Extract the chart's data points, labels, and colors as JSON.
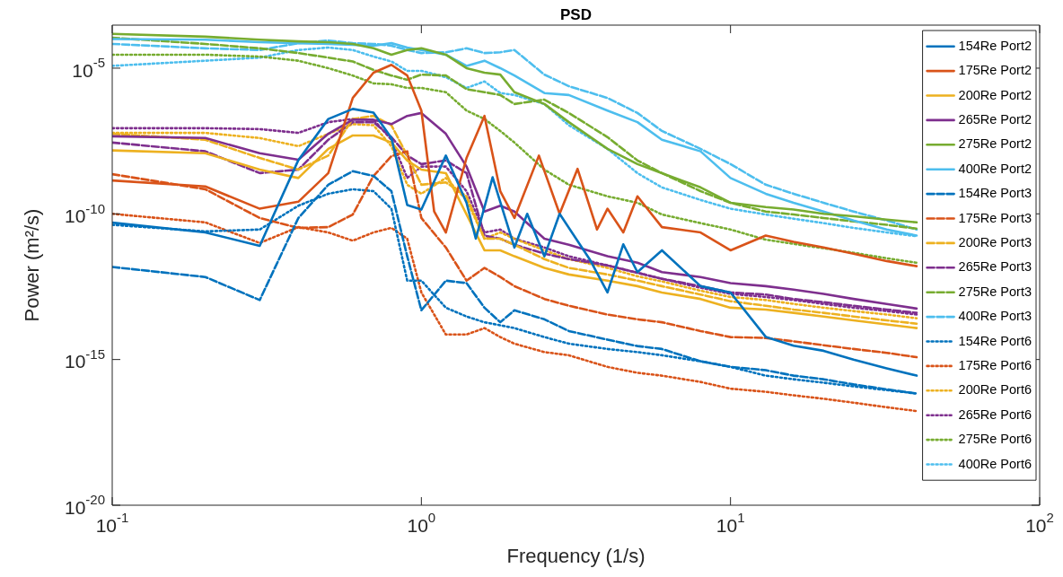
{
  "chart_data": {
    "type": "line",
    "title": "PSD",
    "xlabel": "Frequency (1/s)",
    "ylabel": "Power (m²/s)",
    "log": "xy",
    "grid": false,
    "legend": "top right",
    "marker": "none",
    "xlim": [
      0.1,
      100
    ],
    "ylim": [
      1e-20,
      0.0003
    ],
    "xticks": [
      {
        "value": 0.1,
        "label": "10$^{-1}$"
      },
      {
        "value": 1,
        "label": "10$^{0}$"
      },
      {
        "value": 10,
        "label": "10$^{1}$"
      },
      {
        "value": 100,
        "label": "10$^{2}$"
      }
    ],
    "yticks": [
      {
        "value": 1e-20,
        "label": "10$^{-20}$"
      },
      {
        "value": 1e-15,
        "label": "10$^{-15}$"
      },
      {
        "value": 1e-10,
        "label": "10$^{-10}$"
      },
      {
        "value": 1e-05,
        "label": "10$^{-5}$"
      }
    ],
    "x": [
      0.1,
      0.2,
      0.3,
      0.4,
      0.5,
      0.6,
      0.7,
      0.8,
      0.9,
      1,
      1.2,
      1.4,
      1.6,
      1.8,
      2,
      2.5,
      3,
      4,
      5,
      6,
      8,
      10,
      13,
      16,
      20,
      25,
      32,
      40
    ],
    "series": [
      {
        "name": "154Re Port2",
        "color": "#0072bd",
        "line_style": "solid",
        "x": [
          0.1,
          0.2,
          0.3,
          0.4,
          0.5,
          0.6,
          0.7,
          0.8,
          0.9,
          1,
          1.2,
          1.4,
          1.5,
          1.7,
          2,
          2.2,
          2.5,
          2.8,
          3.5,
          4,
          4.5,
          5,
          6,
          8,
          10,
          13,
          16,
          20,
          25,
          32,
          40
        ],
        "values": [
          5e-11,
          2.3e-11,
          8e-12,
          7e-09,
          1.8e-07,
          4e-07,
          3e-07,
          4e-08,
          2e-10,
          1.4e-10,
          1e-08,
          2.4e-10,
          1.4e-11,
          1.8e-09,
          7e-12,
          1e-10,
          3.5e-12,
          1e-10,
          2.8e-12,
          2e-13,
          9e-12,
          1e-12,
          5.6e-12,
          3.3e-13,
          2e-13,
          6e-15,
          3e-15,
          2e-15,
          1e-15,
          5e-16,
          2.8e-16
        ]
      },
      {
        "name": "175Re Port2",
        "color": "#d95319",
        "line_style": "solid",
        "x": [
          0.1,
          0.2,
          0.3,
          0.4,
          0.5,
          0.6,
          0.7,
          0.8,
          0.9,
          1,
          1.1,
          1.2,
          1.4,
          1.6,
          1.8,
          2,
          2.4,
          2.8,
          3.2,
          3.7,
          4,
          4.5,
          5,
          6,
          8,
          10,
          13,
          16,
          20,
          25,
          32,
          40
        ],
        "values": [
          1.4e-09,
          8.7e-10,
          1.5e-10,
          2.6e-10,
          2.5e-09,
          9.5e-07,
          7e-06,
          1.3e-05,
          5.6e-06,
          3.5e-07,
          1.2e-10,
          2.3e-11,
          8.3e-09,
          2.3e-07,
          6e-10,
          7.2e-11,
          1e-08,
          1e-10,
          3.5e-09,
          2.9e-11,
          1.5e-10,
          2.3e-11,
          4e-10,
          3.5e-11,
          2.3e-11,
          5.6e-12,
          1.8e-11,
          1.1e-11,
          7e-12,
          4.3e-12,
          2.4e-12,
          1.6e-12
        ]
      },
      {
        "name": "200Re Port2",
        "color": "#edb120",
        "line_style": "solid",
        "values": [
          1.5e-08,
          1.2e-08,
          3.3e-09,
          1.7e-09,
          1.7e-08,
          4.9e-08,
          4.9e-08,
          2.8e-08,
          6.8e-09,
          3.3e-09,
          2.5e-09,
          9.5e-11,
          5.6e-12,
          5.6e-12,
          3.5e-12,
          1.4e-12,
          8.3e-13,
          5.1e-13,
          3.3e-13,
          2e-13,
          1.2e-13,
          6e-14,
          5.2e-14,
          4e-14,
          3e-14,
          2.2e-14,
          1.6e-14,
          1.2e-14
        ]
      },
      {
        "name": "265Re Port2",
        "color": "#7e2f8e",
        "line_style": "solid",
        "values": [
          4.6e-08,
          4e-08,
          1.2e-08,
          7.2e-09,
          5.6e-08,
          1.7e-07,
          1.7e-07,
          1.2e-07,
          2.3e-07,
          2.9e-07,
          5.6e-08,
          4.2e-09,
          1.2e-10,
          1.9e-10,
          1.2e-10,
          1.4e-11,
          8.7e-12,
          3.5e-12,
          2.1e-12,
          1e-12,
          6.8e-13,
          4.2e-13,
          3.3e-13,
          2.5e-13,
          1.8e-13,
          1.2e-13,
          8.1e-14,
          5.6e-14
        ]
      },
      {
        "name": "275Re Port2",
        "color": "#77ac30",
        "line_style": "solid",
        "values": [
          0.00015,
          0.00012,
          9.5e-05,
          8.3e-05,
          7.8e-05,
          6.8e-05,
          4.8e-05,
          2.9e-05,
          4.2e-05,
          4.8e-05,
          2.9e-05,
          1e-05,
          7e-06,
          6e-06,
          1.5e-06,
          5.9e-07,
          1.4e-07,
          1.7e-08,
          5.1e-09,
          2.5e-09,
          8.1e-10,
          2.4e-10,
          1.7e-10,
          1.4e-10,
          1e-10,
          8.3e-11,
          6.3e-11,
          5.1e-11
        ]
      },
      {
        "name": "400Re Port2",
        "color": "#4dbeee",
        "line_style": "solid",
        "values": [
          0.0001,
          9.5e-05,
          7.8e-05,
          7.2e-05,
          6.8e-05,
          6.3e-05,
          5.9e-05,
          7.2e-05,
          5.1e-05,
          4.2e-05,
          2.9e-05,
          1.2e-05,
          1.8e-05,
          1e-05,
          5.6e-06,
          1.4e-06,
          1.2e-06,
          3.5e-07,
          1.4e-07,
          3.5e-08,
          1.4e-08,
          1.7e-09,
          4.9e-10,
          2.4e-10,
          1.2e-10,
          5.9e-11,
          2.9e-11,
          1.8e-11
        ]
      },
      {
        "name": "154Re Port3",
        "color": "#0072bd",
        "line_style": "dashed",
        "values": [
          1.5e-12,
          6.8e-13,
          1.1e-13,
          7.2e-11,
          1e-09,
          2.9e-09,
          2e-09,
          6e-10,
          3.5e-12,
          4.9e-14,
          5.1e-13,
          4.2e-13,
          6e-14,
          1.9e-14,
          4.9e-14,
          2.4e-14,
          9.5e-15,
          4.8e-15,
          2.9e-15,
          2.3e-15,
          8.7e-16,
          5.6e-16,
          4.3e-16,
          2.8e-16,
          2.1e-16,
          1.4e-16,
          9.5e-17,
          6.8e-17
        ]
      },
      {
        "name": "175Re Port3",
        "color": "#d95319",
        "line_style": "dashed",
        "values": [
          2.3e-09,
          7e-10,
          7.2e-11,
          3.3e-11,
          3.5e-11,
          9.5e-11,
          2e-09,
          9.5e-09,
          1.4e-08,
          7.2e-11,
          7e-12,
          5.1e-13,
          1.4e-12,
          6.8e-13,
          3.3e-13,
          1.2e-13,
          7e-14,
          3.5e-14,
          2.4e-14,
          1.9e-14,
          9.5e-15,
          5.9e-15,
          5.5e-15,
          4.2e-15,
          3.1e-15,
          2.3e-15,
          1.7e-15,
          1.2e-15
        ]
      },
      {
        "name": "200Re Port3",
        "color": "#edb120",
        "line_style": "dashed",
        "values": [
          5.6e-08,
          3.5e-08,
          8.3e-09,
          3.3e-09,
          1e-08,
          1.8e-07,
          2.3e-07,
          1.1e-07,
          1e-08,
          1e-09,
          1.2e-09,
          4e-10,
          1.4e-11,
          1.4e-11,
          8.7e-12,
          2.8e-12,
          1.4e-12,
          8.3e-13,
          5.1e-13,
          3.3e-13,
          1.7e-13,
          1e-13,
          7e-14,
          5.2e-14,
          4e-14,
          3e-14,
          2.2e-14,
          1.7e-14
        ]
      },
      {
        "name": "265Re Port3",
        "color": "#7e2f8e",
        "line_style": "dashed",
        "values": [
          2.8e-08,
          1.4e-08,
          2.5e-09,
          3.3e-09,
          3.5e-08,
          1.4e-07,
          1.4e-07,
          4.3e-08,
          1e-08,
          5.1e-09,
          6.8e-09,
          2.5e-09,
          1.8e-11,
          1.4e-11,
          8.7e-12,
          4.3e-12,
          2.8e-12,
          1.7e-12,
          9.5e-13,
          5.9e-13,
          3.3e-13,
          2e-13,
          1.7e-13,
          1.2e-13,
          9.3e-14,
          7e-14,
          5.2e-14,
          4e-14
        ]
      },
      {
        "name": "275Re Port3",
        "color": "#77ac30",
        "line_style": "dashed",
        "values": [
          0.00011,
          6.8e-05,
          4.8e-05,
          3.3e-05,
          2.3e-05,
          1.7e-05,
          8.7e-06,
          5.6e-06,
          4e-06,
          6e-06,
          5.6e-06,
          1.9e-06,
          1.5e-06,
          1.2e-06,
          5.9e-07,
          8.3e-07,
          2.9e-07,
          4.3e-08,
          6.8e-09,
          2.5e-09,
          6e-10,
          2.4e-10,
          1.2e-10,
          9.5e-11,
          7.2e-11,
          5.5e-11,
          4.2e-11,
          3.1e-11
        ]
      },
      {
        "name": "400Re Port3",
        "color": "#4dbeee",
        "line_style": "dashed",
        "values": [
          6.8e-05,
          4.8e-05,
          4.2e-05,
          7.2e-05,
          8.9e-05,
          7.2e-05,
          6.8e-05,
          5.9e-05,
          4.2e-05,
          3.3e-05,
          3.5e-05,
          4.8e-05,
          3.3e-05,
          3.5e-05,
          4.2e-05,
          6e-06,
          2.4e-06,
          9.5e-07,
          2.9e-07,
          7e-08,
          1.7e-08,
          5.1e-09,
          1e-09,
          4.9e-10,
          2.4e-10,
          1.2e-10,
          5.9e-11,
          2.9e-11
        ]
      },
      {
        "name": "154Re Port6",
        "color": "#0072bd",
        "line_style": "dotted",
        "values": [
          4.2e-11,
          2.5e-11,
          2.9e-11,
          1.9e-10,
          4.9e-10,
          7e-10,
          6e-10,
          1.5e-10,
          5.1e-13,
          5.1e-13,
          6e-14,
          3e-14,
          1.9e-14,
          1.5e-14,
          1.2e-14,
          5.9e-15,
          3.5e-15,
          2.3e-15,
          1.8e-15,
          1.4e-15,
          8.7e-16,
          5.6e-16,
          2.8e-16,
          2.1e-16,
          1.6e-16,
          1.2e-16,
          8.9e-17,
          6.8e-17
        ]
      },
      {
        "name": "175Re Port6",
        "color": "#d95319",
        "line_style": "dotted",
        "values": [
          1e-10,
          5.1e-11,
          1e-11,
          3.5e-11,
          2.3e-11,
          1.2e-11,
          2.3e-11,
          3.3e-11,
          1.4e-11,
          2e-13,
          7.2e-15,
          7.2e-15,
          1.2e-14,
          5.9e-15,
          3.5e-15,
          1.8e-15,
          1.4e-15,
          5.6e-16,
          3.5e-16,
          2.8e-16,
          1.7e-16,
          1e-16,
          7.8e-17,
          5.9e-17,
          4.5e-17,
          3.3e-17,
          2.3e-17,
          1.7e-17
        ]
      },
      {
        "name": "200Re Port6",
        "color": "#edb120",
        "line_style": "dotted",
        "values": [
          6e-08,
          6e-08,
          4e-08,
          2.1e-08,
          5.6e-08,
          1.2e-07,
          1.1e-07,
          2.1e-08,
          1e-09,
          4.9e-10,
          1.7e-09,
          3e-10,
          1.4e-11,
          2.3e-11,
          1.4e-11,
          5.6e-12,
          2.8e-12,
          1.4e-12,
          7.2e-13,
          4.8e-13,
          2.3e-13,
          1.4e-13,
          1.1e-13,
          8.1e-14,
          6e-14,
          4.6e-14,
          3.5e-14,
          2.6e-14
        ]
      },
      {
        "name": "265Re Port6",
        "color": "#7e2f8e",
        "line_style": "dotted",
        "values": [
          8.7e-08,
          8.7e-08,
          8.1e-08,
          6e-08,
          1.4e-07,
          1.8e-07,
          1.7e-07,
          3.5e-08,
          1.7e-09,
          4.2e-09,
          4.2e-09,
          6e-10,
          2.3e-11,
          2.9e-11,
          1.4e-11,
          7e-12,
          3.5e-12,
          1.7e-12,
          9.5e-13,
          5.9e-13,
          2.9e-13,
          1.8e-13,
          1.4e-13,
          1.1e-13,
          8.1e-14,
          6e-14,
          4.6e-14,
          3.5e-14
        ]
      },
      {
        "name": "275Re Port6",
        "color": "#77ac30",
        "line_style": "dotted",
        "values": [
          2.9e-05,
          2.9e-05,
          2.5e-05,
          1.8e-05,
          1e-05,
          5.6e-06,
          3e-06,
          2.8e-06,
          2.1e-06,
          2.1e-06,
          1.5e-06,
          3.5e-07,
          1.8e-07,
          7e-08,
          2.8e-08,
          3.3e-09,
          1e-09,
          4e-10,
          2.4e-10,
          9.5e-11,
          4.8e-11,
          2.9e-11,
          1.3e-11,
          9.3e-12,
          6.6e-12,
          4.6e-12,
          3e-12,
          2.1e-12
        ]
      },
      {
        "name": "400Re Port6",
        "color": "#4dbeee",
        "line_style": "dotted",
        "values": [
          1.2e-05,
          1.8e-05,
          2.3e-05,
          4.2e-05,
          5.1e-05,
          4.2e-05,
          2.5e-05,
          1.7e-05,
          8.1e-06,
          8.1e-06,
          4.9e-06,
          2.1e-06,
          3.5e-06,
          1.4e-06,
          1.2e-06,
          5.9e-07,
          1.1e-07,
          1.7e-08,
          2.5e-09,
          8.1e-10,
          3e-10,
          1.5e-10,
          9.5e-11,
          6.8e-11,
          4.8e-11,
          3.3e-11,
          2.3e-11,
          1.7e-11
        ]
      }
    ]
  }
}
